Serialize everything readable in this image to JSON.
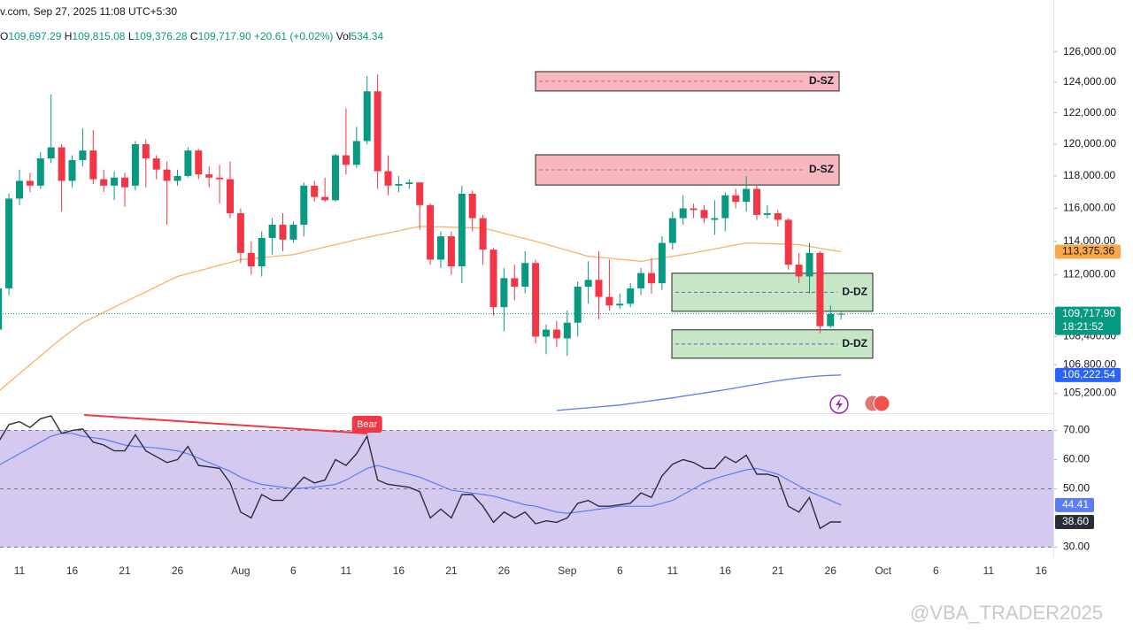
{
  "header": {
    "source": "v.com, Sep 27, 2025 11:08 UTC+5:30",
    "ohlc": [
      [
        "O",
        "109,697.29"
      ],
      [
        "H",
        "109,815.08"
      ],
      [
        "L",
        "109,376.28"
      ],
      [
        "C",
        "109,717.90"
      ]
    ],
    "change": "+20.61 (+0.02%)",
    "vol_label": "Vol",
    "vol": "534.34"
  },
  "watermark": "@VBA_TRADER2025",
  "chart_data": [
    {
      "type": "candlestick",
      "log_scale": true,
      "grid": false,
      "up_color": "#089981",
      "down_color": "#f23645",
      "categories": [
        null,
        null,
        "11",
        null,
        null,
        null,
        null,
        "16",
        null,
        null,
        null,
        null,
        "21",
        null,
        null,
        null,
        null,
        "26",
        null,
        null,
        null,
        null,
        null,
        "Aug",
        null,
        null,
        null,
        null,
        "6",
        null,
        null,
        null,
        null,
        "11",
        null,
        null,
        null,
        null,
        "16",
        null,
        null,
        null,
        null,
        "21",
        null,
        null,
        null,
        null,
        "26",
        null,
        null,
        null,
        null,
        null,
        "Sep",
        null,
        null,
        null,
        null,
        "6",
        null,
        null,
        null,
        null,
        "11",
        null,
        null,
        null,
        null,
        "16",
        null,
        null,
        null,
        null,
        "21",
        null,
        null,
        null,
        null,
        "26",
        null,
        null,
        null,
        null,
        "Oct",
        null,
        null,
        null,
        null,
        "6",
        null,
        null,
        null,
        null,
        "11",
        null,
        null,
        null,
        null,
        "16"
      ],
      "open": [
        108800,
        111200,
        116600,
        117700,
        117400,
        119100,
        119800,
        117700,
        119000,
        119600,
        117800,
        117400,
        117900,
        117400,
        120000,
        119100,
        118400,
        117700,
        118000,
        119600,
        118100,
        117900,
        117800,
        115700,
        113300,
        112500,
        114200,
        115000,
        114100,
        115000,
        117400,
        116700,
        116500,
        119300,
        118700,
        120200,
        123400,
        118300,
        117400,
        117500,
        117600,
        116200,
        112900,
        114300,
        112500,
        116900,
        115400,
        113500,
        110100,
        111800,
        111300,
        112700,
        108400,
        108800,
        108300,
        109200,
        111300,
        111700,
        110700,
        110200,
        110300,
        111200,
        112100,
        111500,
        113900,
        115400,
        116000,
        115900,
        115300,
        115400,
        116800,
        116400,
        117200,
        115600,
        115700,
        115300,
        112600,
        111900,
        113300,
        109000,
        109697.29,
        null,
        null,
        null,
        null,
        null,
        null,
        null,
        null,
        null,
        null,
        null,
        null,
        null,
        null,
        null,
        null,
        null,
        null,
        null
      ],
      "high": [
        111500,
        116900,
        118400,
        118200,
        119500,
        123200,
        120000,
        119300,
        121000,
        120900,
        118400,
        118300,
        118200,
        120200,
        120300,
        119300,
        118900,
        118400,
        119800,
        119700,
        118600,
        118700,
        118900,
        116000,
        114000,
        114600,
        115400,
        115700,
        115200,
        117600,
        117700,
        117900,
        119400,
        122300,
        121100,
        124400,
        124500,
        119300,
        118000,
        117800,
        117600,
        116300,
        114600,
        114600,
        117400,
        117100,
        115600,
        113600,
        112400,
        112600,
        113400,
        112900,
        109100,
        109300,
        109900,
        111600,
        112800,
        113400,
        112900,
        110900,
        111500,
        112400,
        113000,
        114300,
        115800,
        116800,
        116300,
        116200,
        116500,
        117000,
        117200,
        118000,
        117400,
        116200,
        115900,
        115400,
        113300,
        113900,
        113400,
        110200,
        109815.08,
        null,
        null,
        null,
        null,
        null,
        null,
        null,
        null,
        null,
        null,
        null,
        null,
        null,
        null,
        null,
        null,
        null,
        null,
        null
      ],
      "low": [
        107900,
        110800,
        116200,
        117000,
        117200,
        118800,
        115800,
        117300,
        118600,
        117500,
        117000,
        116500,
        116100,
        117100,
        117300,
        117800,
        115000,
        117400,
        117900,
        117800,
        117300,
        116300,
        115400,
        112700,
        112000,
        111900,
        113200,
        113400,
        113900,
        114300,
        116400,
        116400,
        116400,
        118100,
        118500,
        120000,
        117200,
        116800,
        117000,
        117200,
        114700,
        112600,
        112400,
        112000,
        111500,
        114600,
        112600,
        109600,
        108700,
        110500,
        110900,
        108000,
        107400,
        107800,
        107300,
        108400,
        110300,
        109400,
        109900,
        110000,
        110100,
        110800,
        110900,
        111100,
        113500,
        115000,
        115400,
        115100,
        114400,
        114600,
        116000,
        115800,
        115300,
        115400,
        114900,
        112300,
        111500,
        110900,
        108600,
        108900,
        109376.28,
        null,
        null,
        null,
        null,
        null,
        null,
        null,
        null,
        null,
        null,
        null,
        null,
        null,
        null,
        null,
        null,
        null,
        null,
        null
      ],
      "close": [
        111200,
        116600,
        117700,
        117400,
        119100,
        119800,
        117700,
        119000,
        119600,
        117800,
        117400,
        117900,
        117300,
        120000,
        119100,
        118400,
        117700,
        118000,
        119600,
        118100,
        117900,
        117800,
        115700,
        113300,
        112500,
        114200,
        115000,
        114100,
        115000,
        117400,
        116700,
        116500,
        119300,
        118700,
        120200,
        123400,
        118300,
        117400,
        117500,
        117600,
        116200,
        112900,
        114300,
        112500,
        116900,
        115400,
        113500,
        110100,
        111800,
        111300,
        112700,
        108400,
        108800,
        108300,
        109200,
        111300,
        111700,
        110700,
        110200,
        110300,
        111200,
        112100,
        111500,
        113900,
        115400,
        116000,
        115900,
        115400,
        115400,
        116800,
        116400,
        117200,
        115600,
        115700,
        115300,
        112600,
        111900,
        113300,
        109000,
        109700,
        109717.9,
        null,
        null,
        null,
        null,
        null,
        null,
        null,
        null,
        null,
        null,
        null,
        null,
        null,
        null,
        null,
        null,
        null,
        null,
        null
      ],
      "series": [
        {
          "color": "#f7b267",
          "values": [
            105300,
            105800,
            106300,
            106800,
            107300,
            107800,
            108300,
            108750,
            109200,
            109500,
            109800,
            110100,
            110400,
            110700,
            111000,
            111300,
            111600,
            111900,
            112070,
            112230,
            112400,
            112570,
            112730,
            112900,
            112960,
            113020,
            113080,
            113140,
            113200,
            113350,
            113500,
            113650,
            113800,
            113950,
            114100,
            114230,
            114370,
            114500,
            114630,
            114770,
            114900,
            114880,
            114870,
            114850,
            114830,
            114820,
            114800,
            114640,
            114480,
            114320,
            114160,
            114000,
            113820,
            113640,
            113460,
            113280,
            113100,
            113040,
            112980,
            112920,
            112860,
            112800,
            112900,
            113000,
            113100,
            113200,
            113300,
            113420,
            113540,
            113660,
            113780,
            113900,
            113880,
            113860,
            113840,
            113820,
            113800,
            113690,
            113580,
            113470,
            113375.36,
            null,
            null,
            null,
            null,
            null,
            null,
            null,
            null,
            null,
            null,
            null,
            null,
            null,
            null,
            null,
            null,
            null,
            null,
            null
          ]
        },
        {
          "color": "#5b7cf5",
          "values": [
            null,
            null,
            null,
            null,
            null,
            null,
            null,
            null,
            null,
            null,
            null,
            null,
            null,
            null,
            null,
            null,
            null,
            null,
            null,
            null,
            null,
            null,
            null,
            null,
            null,
            null,
            null,
            null,
            null,
            null,
            null,
            null,
            null,
            null,
            null,
            null,
            null,
            null,
            null,
            null,
            null,
            null,
            null,
            null,
            null,
            null,
            null,
            null,
            null,
            null,
            null,
            null,
            null,
            104250,
            104300,
            104350,
            104400,
            104450,
            104500,
            104550,
            104630,
            104710,
            104790,
            104870,
            104950,
            105040,
            105130,
            105220,
            105310,
            105400,
            105500,
            105600,
            105700,
            105800,
            105900,
            105990,
            106060,
            106120,
            106170,
            106200,
            106222.54,
            null,
            null,
            null,
            null,
            null,
            null,
            null,
            null,
            null,
            null,
            null,
            null,
            null,
            null,
            null,
            null,
            null,
            null,
            null
          ]
        }
      ],
      "zones": [
        {
          "label": "D-SZ",
          "low": 123420,
          "high": 124690,
          "color": "#f7b7bf"
        },
        {
          "label": "D-SZ",
          "low": 117440,
          "high": 119330,
          "color": "#f7b7bf"
        },
        {
          "label": "D-DZ",
          "low": 109860,
          "high": 112090,
          "color": "#c6e7c6"
        },
        {
          "label": "D-DZ",
          "low": 107170,
          "high": 108790,
          "color": "#c6e7c6"
        }
      ],
      "ylim": [
        104200,
        129500
      ],
      "yticks": [
        {
          "value": 126000,
          "label": "126,000.00"
        },
        {
          "value": 124000,
          "label": "124,000.00"
        },
        {
          "value": 122000,
          "label": "122,000.00"
        },
        {
          "value": 120000,
          "label": "120,000.00"
        },
        {
          "value": 118000,
          "label": "118,000.00"
        },
        {
          "value": 116000,
          "label": "116,000.00"
        },
        {
          "value": 114000,
          "label": "114,000.00"
        },
        {
          "value": 112000,
          "label": "112,000.00"
        },
        {
          "value": 108400,
          "label": "108,400.00"
        },
        {
          "value": 106800,
          "label": "106,800.00"
        },
        {
          "value": 105200,
          "label": "105,200.00"
        }
      ],
      "price_labels": [
        {
          "value": 113375.36,
          "label": "113,375.36",
          "color": "#f7a94a",
          "text_color": "#131722"
        },
        {
          "value": 109717.9,
          "label": "109,717.90",
          "color": "#089981",
          "text_color": "#ffffff",
          "countdown": "18:21:52"
        },
        {
          "value": 106222.54,
          "label": "106,222.54",
          "color": "#2962ff",
          "text_color": "#ffffff"
        }
      ]
    },
    {
      "type": "line",
      "annotation": "Bear",
      "band": [
        30,
        70
      ],
      "midline": 50,
      "band_color": "#d5c9ef",
      "series": [
        {
          "color": "#2a2e39",
          "values": [
            66,
            72,
            73,
            71,
            74,
            75,
            69,
            70,
            70.5,
            66,
            65,
            63,
            63,
            68.5,
            63,
            61,
            59,
            60,
            64.5,
            58,
            57.5,
            57,
            52,
            42,
            40,
            48,
            46,
            46,
            50,
            54,
            52,
            53,
            60,
            58,
            62,
            68,
            53,
            51.5,
            51,
            50.5,
            49,
            40,
            43,
            40,
            48,
            48,
            44,
            38.5,
            42,
            40,
            42,
            38,
            39,
            38.5,
            40,
            45,
            46,
            44,
            44,
            44.5,
            45,
            48.6,
            47,
            54.4,
            58.4,
            60,
            59,
            57,
            57,
            61,
            59,
            61.5,
            55,
            55,
            54,
            44,
            42,
            47,
            36.4,
            38.6,
            38.6,
            null,
            null,
            null,
            null,
            null,
            null,
            null,
            null,
            null,
            null,
            null,
            null,
            null,
            null,
            null,
            null,
            null,
            null,
            null
          ],
          "value_label": "38.60"
        },
        {
          "color": "#5b7cf5",
          "values": [
            58,
            60,
            62,
            64,
            66,
            68,
            69,
            69,
            68,
            67.5,
            67,
            66,
            65,
            64.5,
            64.3,
            64,
            63.5,
            63,
            62,
            60.5,
            59,
            57.5,
            56,
            54,
            52.5,
            51.5,
            51,
            50.5,
            50,
            50.3,
            50.6,
            51,
            51.5,
            53,
            55,
            57,
            58,
            57,
            56,
            55,
            54,
            52.5,
            51,
            49.5,
            49,
            48.5,
            48,
            47.5,
            46.5,
            45.5,
            44.5,
            44,
            43,
            42,
            41.6,
            42,
            42.5,
            43,
            43.5,
            44,
            44,
            44,
            44,
            45,
            46,
            48,
            50,
            52,
            53.5,
            54.5,
            55.5,
            56.5,
            57,
            56,
            55,
            53,
            51,
            49,
            47.5,
            46,
            44.41,
            null,
            null,
            null,
            null,
            null,
            null,
            null,
            null,
            null,
            null,
            null,
            null,
            null,
            null,
            null,
            null,
            null,
            null,
            null
          ],
          "value_label": "44.41"
        }
      ],
      "ylim": [
        28,
        75
      ],
      "yticks": [
        {
          "value": 70,
          "label": "70.00"
        },
        {
          "value": 60,
          "label": "60.00"
        },
        {
          "value": 50,
          "label": "50.00"
        },
        {
          "value": 30,
          "label": "30.00"
        }
      ]
    }
  ]
}
